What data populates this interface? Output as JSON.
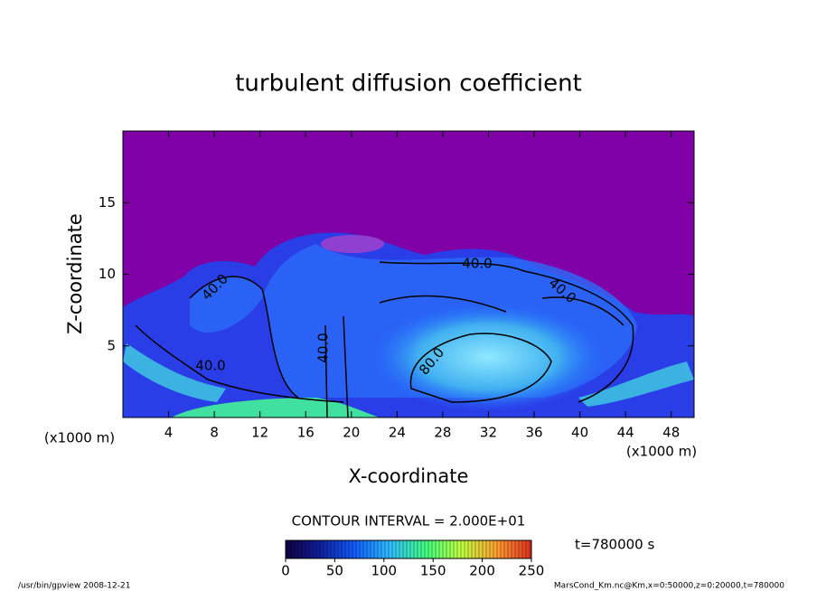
{
  "chart_data": {
    "type": "contour",
    "title": "turbulent diffusion coefficient",
    "xlabel": "X-coordinate",
    "ylabel": "Z-coordinate",
    "x_unit": "(x1000 m)",
    "xlim": [
      0,
      50
    ],
    "xticks": [
      4,
      8,
      12,
      16,
      20,
      24,
      28,
      32,
      36,
      40,
      44,
      48
    ],
    "ylim": [
      0,
      20
    ],
    "yticks": [
      5,
      10,
      15
    ],
    "contour_labels": [
      {
        "value": 40,
        "label": "40.0"
      },
      {
        "value": 40,
        "label": "40.0"
      },
      {
        "value": 40,
        "label": "40.0"
      },
      {
        "value": 40,
        "label": "40.0"
      },
      {
        "value": 40,
        "label": "40.0"
      },
      {
        "value": 80,
        "label": "80.0"
      }
    ],
    "contour_interval_text": "CONTOUR INTERVAL = 2.000E+01",
    "time_text": "t=780000 s",
    "colorbar": {
      "clim": [
        0,
        250
      ],
      "ticks": [
        0,
        50,
        100,
        150,
        200,
        250
      ],
      "colormap": [
        "#100040",
        "#1020a0",
        "#1060ff",
        "#30c0ff",
        "#40ff80",
        "#c0ff40",
        "#ffa030",
        "#e03020"
      ]
    },
    "background_color": "#8000a8",
    "footer_left": "/usr/bin/gpview  2008-12-21",
    "footer_right": "MarsCond_Km.nc@Km,x=0:50000,z=0:20000,t=780000"
  }
}
